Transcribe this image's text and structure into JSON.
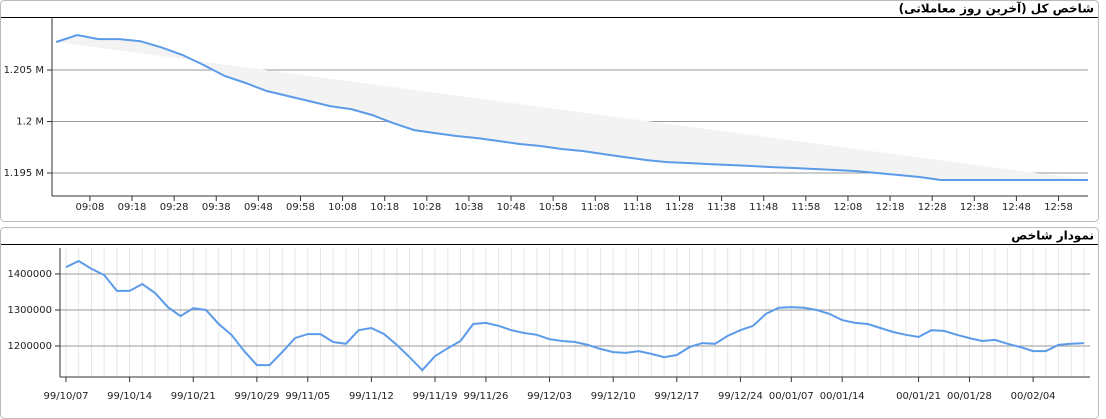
{
  "chart_data": [
    {
      "type": "line",
      "title": "شاخص کل (آخرین روز معاملاتی)",
      "x": [
        540,
        545,
        550,
        555,
        560,
        565,
        570,
        575,
        580,
        585,
        590,
        595,
        600,
        605,
        610,
        615,
        620,
        625,
        630,
        635,
        640,
        645,
        650,
        655,
        660,
        665,
        670,
        675,
        680,
        685,
        690,
        695,
        700,
        705,
        710,
        715,
        720,
        725,
        730,
        735,
        740,
        745,
        750,
        755,
        760,
        765,
        770,
        775,
        780,
        785
      ],
      "series": [
        {
          "color": "#5b9bea",
          "values": [
            1207720,
            1208400,
            1208000,
            1208000,
            1207800,
            1207200,
            1206460,
            1205490,
            1204420,
            1203740,
            1202960,
            1202480,
            1201990,
            1201500,
            1201210,
            1200630,
            1199850,
            1199170,
            1198880,
            1198590,
            1198390,
            1198110,
            1197820,
            1197620,
            1197330,
            1197140,
            1196840,
            1196550,
            1196260,
            1196060,
            1195970,
            1195870,
            1195780,
            1195680,
            1195580,
            1195490,
            1195390,
            1195290,
            1195190,
            1195000,
            1194810,
            1194610,
            1194320,
            1194320,
            1194320,
            1194320,
            1194320,
            1194320,
            1194320,
            1194320
          ]
        }
      ],
      "xlim": [
        539,
        785
      ],
      "xticks": [
        {
          "value": 548,
          "label": "09:08"
        },
        {
          "value": 558,
          "label": "09:18"
        },
        {
          "value": 568,
          "label": "09:28"
        },
        {
          "value": 578,
          "label": "09:38"
        },
        {
          "value": 588,
          "label": "09:48"
        },
        {
          "value": 598,
          "label": "09:58"
        },
        {
          "value": 608,
          "label": "10:08"
        },
        {
          "value": 618,
          "label": "10:18"
        },
        {
          "value": 628,
          "label": "10:28"
        },
        {
          "value": 638,
          "label": "10:38"
        },
        {
          "value": 648,
          "label": "10:48"
        },
        {
          "value": 658,
          "label": "10:58"
        },
        {
          "value": 668,
          "label": "11:08"
        },
        {
          "value": 678,
          "label": "11:18"
        },
        {
          "value": 688,
          "label": "11:28"
        },
        {
          "value": 698,
          "label": "11:38"
        },
        {
          "value": 708,
          "label": "11:48"
        },
        {
          "value": 718,
          "label": "11:58"
        },
        {
          "value": 728,
          "label": "12:08"
        },
        {
          "value": 738,
          "label": "12:18"
        },
        {
          "value": 748,
          "label": "12:28"
        },
        {
          "value": 758,
          "label": "12:38"
        },
        {
          "value": 768,
          "label": "12:48"
        },
        {
          "value": 778,
          "label": "12:58"
        }
      ],
      "ylim": [
        1192770,
        1210050
      ],
      "yticks": [
        {
          "value": 1195000,
          "label": "1.195 M"
        },
        {
          "value": 1200000,
          "label": "1.2 M"
        },
        {
          "value": 1205000,
          "label": "1.205 M"
        }
      ],
      "grid": true
    },
    {
      "type": "line",
      "title": "نمودار شاخص",
      "categories": [
        "99/10/07",
        null,
        null,
        null,
        null,
        "99/10/14",
        null,
        null,
        null,
        null,
        "99/10/21",
        null,
        null,
        null,
        null,
        "99/10/29",
        null,
        null,
        null,
        "99/11/05",
        null,
        null,
        null,
        null,
        "99/11/12",
        null,
        null,
        null,
        null,
        "99/11/19",
        null,
        null,
        null,
        "99/11/26",
        null,
        null,
        null,
        null,
        "99/12/03",
        null,
        null,
        null,
        null,
        "99/12/10",
        null,
        null,
        null,
        null,
        "99/12/17",
        null,
        null,
        null,
        null,
        "99/12/24",
        null,
        null,
        null,
        "00/01/07",
        null,
        null,
        null,
        "00/01/14",
        null,
        null,
        null,
        null,
        null,
        "00/01/21",
        null,
        null,
        null,
        "00/01/28",
        null,
        null,
        null,
        null,
        "00/02/04",
        null,
        null,
        null,
        null
      ],
      "series": [
        {
          "color": "#5b9bea",
          "values": [
            1419000,
            1436000,
            1414000,
            1397000,
            1353000,
            1353000,
            1372000,
            1347000,
            1308000,
            1283000,
            1305000,
            1300000,
            1261000,
            1231000,
            1186000,
            1147000,
            1147000,
            1183000,
            1222000,
            1233000,
            1233000,
            1211000,
            1206000,
            1244000,
            1250000,
            1233000,
            1203000,
            1169000,
            1133000,
            1172000,
            1194000,
            1214000,
            1261000,
            1264000,
            1256000,
            1244000,
            1236000,
            1231000,
            1219000,
            1214000,
            1211000,
            1203000,
            1192000,
            1183000,
            1181000,
            1186000,
            1178000,
            1169000,
            1175000,
            1197000,
            1208000,
            1206000,
            1228000,
            1244000,
            1256000,
            1289000,
            1306000,
            1308000,
            1306000,
            1300000,
            1289000,
            1272000,
            1264000,
            1261000,
            1250000,
            1239000,
            1231000,
            1225000,
            1244000,
            1242000,
            1231000,
            1222000,
            1214000,
            1217000,
            1206000,
            1197000,
            1186000,
            1186000,
            1203000,
            1206000,
            1208000
          ]
        }
      ],
      "ylim": [
        1114000,
        1472000
      ],
      "yticks": [
        1200000,
        1300000,
        1400000
      ],
      "grid": true
    }
  ]
}
